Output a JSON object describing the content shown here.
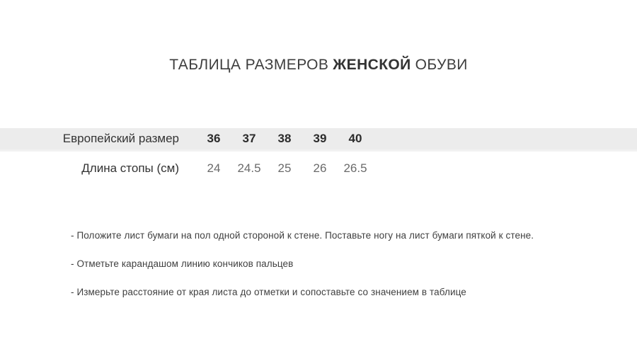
{
  "title": {
    "prefix": "ТАБЛИЦА РАЗМЕРОВ",
    "bold_word": "ЖЕНСКОЙ",
    "suffix": "ОБУВИ"
  },
  "size_table": {
    "rows": [
      {
        "label": "Европейский размер",
        "values": [
          "36",
          "37",
          "38",
          "39",
          "40"
        ]
      },
      {
        "label": "Длина стопы (см)",
        "values": [
          "24",
          "24.5",
          "25",
          "26",
          "26.5"
        ]
      }
    ]
  },
  "instructions": [
    "- Положите лист бумаги на пол одной стороной к стене. Поставьте ногу на лист бумаги пяткой к стене.",
    "- Отметьте карандашом линию кончиков пальцев",
    "- Измерьте расстояние от края листа до отметки и сопоставьте со значением в таблице"
  ],
  "colors": {
    "background": "#ffffff",
    "row_highlight": "#ececec",
    "title_text": "#3d3d3d",
    "size_value_text": "#2b2b2b",
    "length_value_text": "#6a6a6a",
    "instruction_text": "#3f3f3f"
  }
}
